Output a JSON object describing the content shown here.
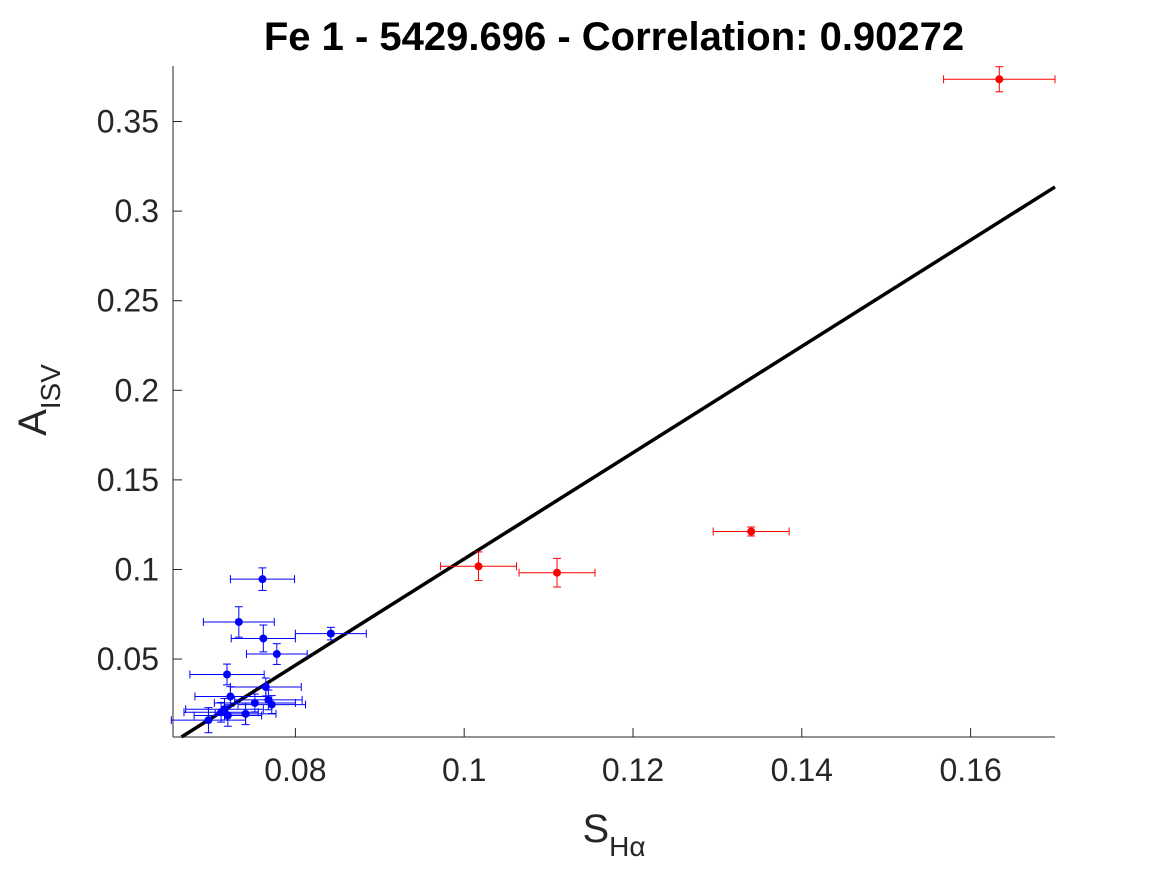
{
  "chart_data": {
    "type": "scatter",
    "title": "Fe 1 - 5429.696 - Correlation: 0.90272",
    "xlabel": {
      "main": "S",
      "sub": "Hα"
    },
    "ylabel": {
      "main": "A",
      "sub": "ISV"
    },
    "xlim": [
      0.0655,
      0.17
    ],
    "ylim": [
      0.0065,
      0.381
    ],
    "xticks": [
      {
        "value": 0.08,
        "label": "0.08"
      },
      {
        "value": 0.1,
        "label": "0.1"
      },
      {
        "value": 0.12,
        "label": "0.12"
      },
      {
        "value": 0.14,
        "label": "0.14"
      },
      {
        "value": 0.16,
        "label": "0.16"
      }
    ],
    "yticks": [
      {
        "value": 0.05,
        "label": "0.05"
      },
      {
        "value": 0.1,
        "label": "0.1"
      },
      {
        "value": 0.15,
        "label": "0.15"
      },
      {
        "value": 0.2,
        "label": "0.2"
      },
      {
        "value": 0.25,
        "label": "0.25"
      },
      {
        "value": 0.3,
        "label": "0.3"
      },
      {
        "value": 0.35,
        "label": "0.35"
      }
    ],
    "grid": false,
    "fit_line": {
      "x": [
        0.0665,
        0.17
      ],
      "y": [
        0.0065,
        0.3135
      ],
      "color": "#000000"
    },
    "series": [
      {
        "color": "#0000ff",
        "points": [
          {
            "x": 0.0761,
            "y": 0.0946,
            "xerr": 0.0038,
            "yerr": 0.0063
          },
          {
            "x": 0.0733,
            "y": 0.0707,
            "xerr": 0.0042,
            "yerr": 0.0085
          },
          {
            "x": 0.0762,
            "y": 0.0615,
            "xerr": 0.0038,
            "yerr": 0.0075
          },
          {
            "x": 0.0842,
            "y": 0.0642,
            "xerr": 0.0042,
            "yerr": 0.0035
          },
          {
            "x": 0.0778,
            "y": 0.0528,
            "xerr": 0.0036,
            "yerr": 0.0058
          },
          {
            "x": 0.0719,
            "y": 0.0414,
            "xerr": 0.0044,
            "yerr": 0.0058
          },
          {
            "x": 0.0765,
            "y": 0.0344,
            "xerr": 0.0042,
            "yerr": 0.005
          },
          {
            "x": 0.0723,
            "y": 0.0291,
            "xerr": 0.0042,
            "yerr": 0.0055
          },
          {
            "x": 0.0752,
            "y": 0.0255,
            "xerr": 0.0048,
            "yerr": 0.005
          },
          {
            "x": 0.0768,
            "y": 0.0272,
            "xerr": 0.004,
            "yerr": 0.0055
          },
          {
            "x": 0.0772,
            "y": 0.0246,
            "xerr": 0.004,
            "yerr": 0.005
          },
          {
            "x": 0.0716,
            "y": 0.022,
            "xerr": 0.0046,
            "yerr": 0.006
          },
          {
            "x": 0.0712,
            "y": 0.0203,
            "xerr": 0.0044,
            "yerr": 0.0055
          },
          {
            "x": 0.072,
            "y": 0.0185,
            "xerr": 0.004,
            "yerr": 0.006
          },
          {
            "x": 0.0741,
            "y": 0.0194,
            "xerr": 0.0036,
            "yerr": 0.006
          },
          {
            "x": 0.0697,
            "y": 0.0159,
            "xerr": 0.0044,
            "yerr": 0.007
          }
        ]
      },
      {
        "color": "#ff0000",
        "points": [
          {
            "x": 0.1017,
            "y": 0.1018,
            "xerr": 0.0045,
            "yerr": 0.008
          },
          {
            "x": 0.111,
            "y": 0.0982,
            "xerr": 0.0045,
            "yerr": 0.008
          },
          {
            "x": 0.134,
            "y": 0.1212,
            "xerr": 0.0045,
            "yerr": 0.0025
          },
          {
            "x": 0.1634,
            "y": 0.3736,
            "xerr": 0.0066,
            "yerr": 0.007
          }
        ]
      }
    ]
  }
}
